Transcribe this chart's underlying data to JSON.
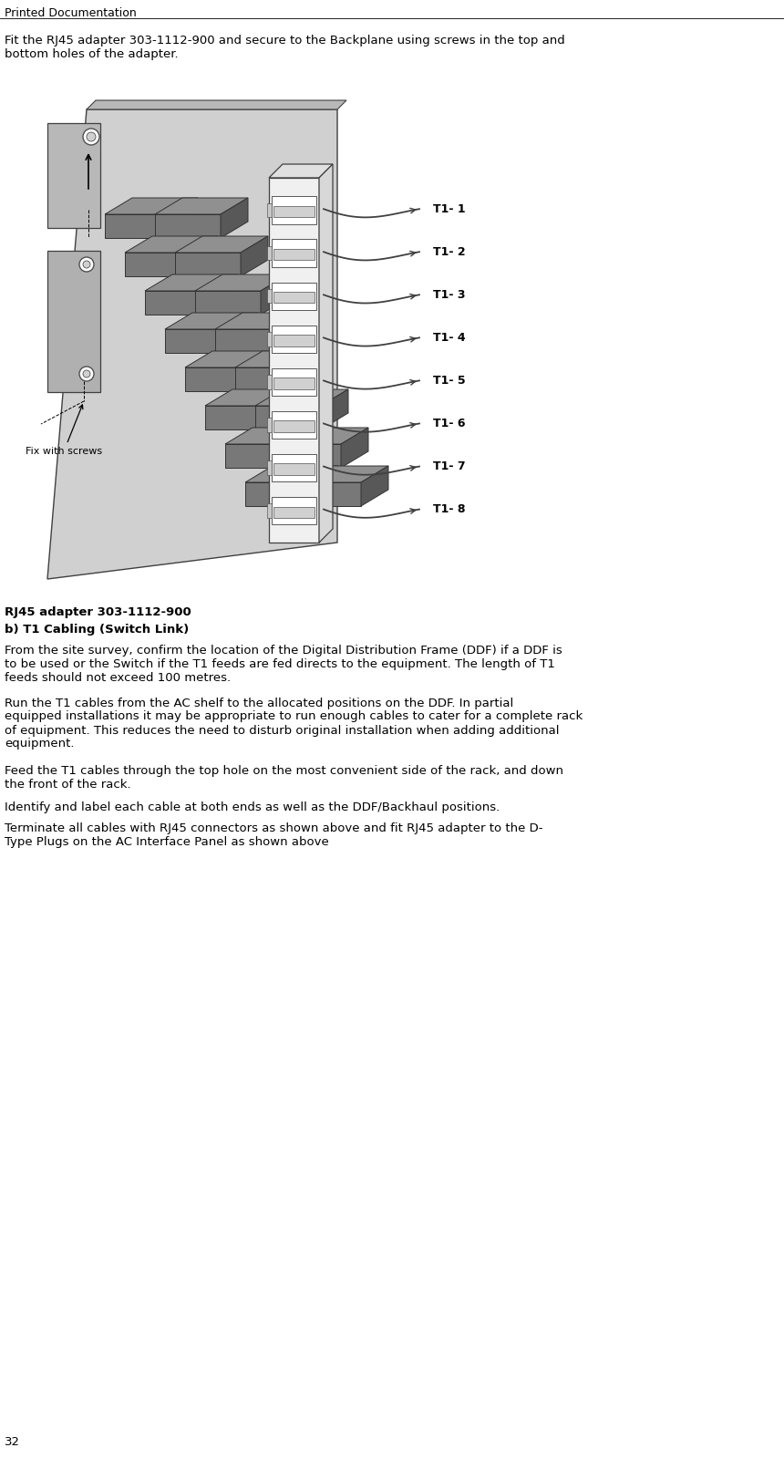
{
  "header": "Printed Documentation",
  "page_number": "32",
  "intro_text": "Fit the RJ45 adapter 303-1112-900 and secure to the Backplane using screws in the top and\nbottom holes of the adapter.",
  "caption_bold1": "RJ45 adapter 303-1112-900",
  "caption_bold2": "b) T1 Cabling (Switch Link)",
  "body_paragraphs": [
    "From the site survey, confirm the location of the Digital Distribution Frame (DDF) if a DDF is\nto be used or the Switch if the T1 feeds are fed directs to the equipment. The length of T1\nfeeds should not exceed 100 metres.",
    "Run the T1 cables from the AC shelf to the allocated positions on the DDF. In partial\nequipped installations it may be appropriate to run enough cables to cater for a complete rack\nof equipment. This reduces the need to disturb original installation when adding additional\nequipment.",
    "Feed the T1 cables through the top hole on the most convenient side of the rack, and down\nthe front of the rack.",
    "Identify and label each cable at both ends as well as the DDF/Backhaul positions.",
    "Terminate all cables with RJ45 connectors as shown above and fit RJ45 adapter to the D-\nType Plugs on the AC Interface Panel as shown above"
  ],
  "t1_labels": [
    "T1- 1",
    "T1- 2",
    "T1- 3",
    "T1- 4",
    "T1- 5",
    "T1- 6",
    "T1- 7",
    "T1- 8"
  ],
  "fix_with_screws_label": "Fix with screws",
  "background_color": "#ffffff",
  "text_color": "#000000"
}
